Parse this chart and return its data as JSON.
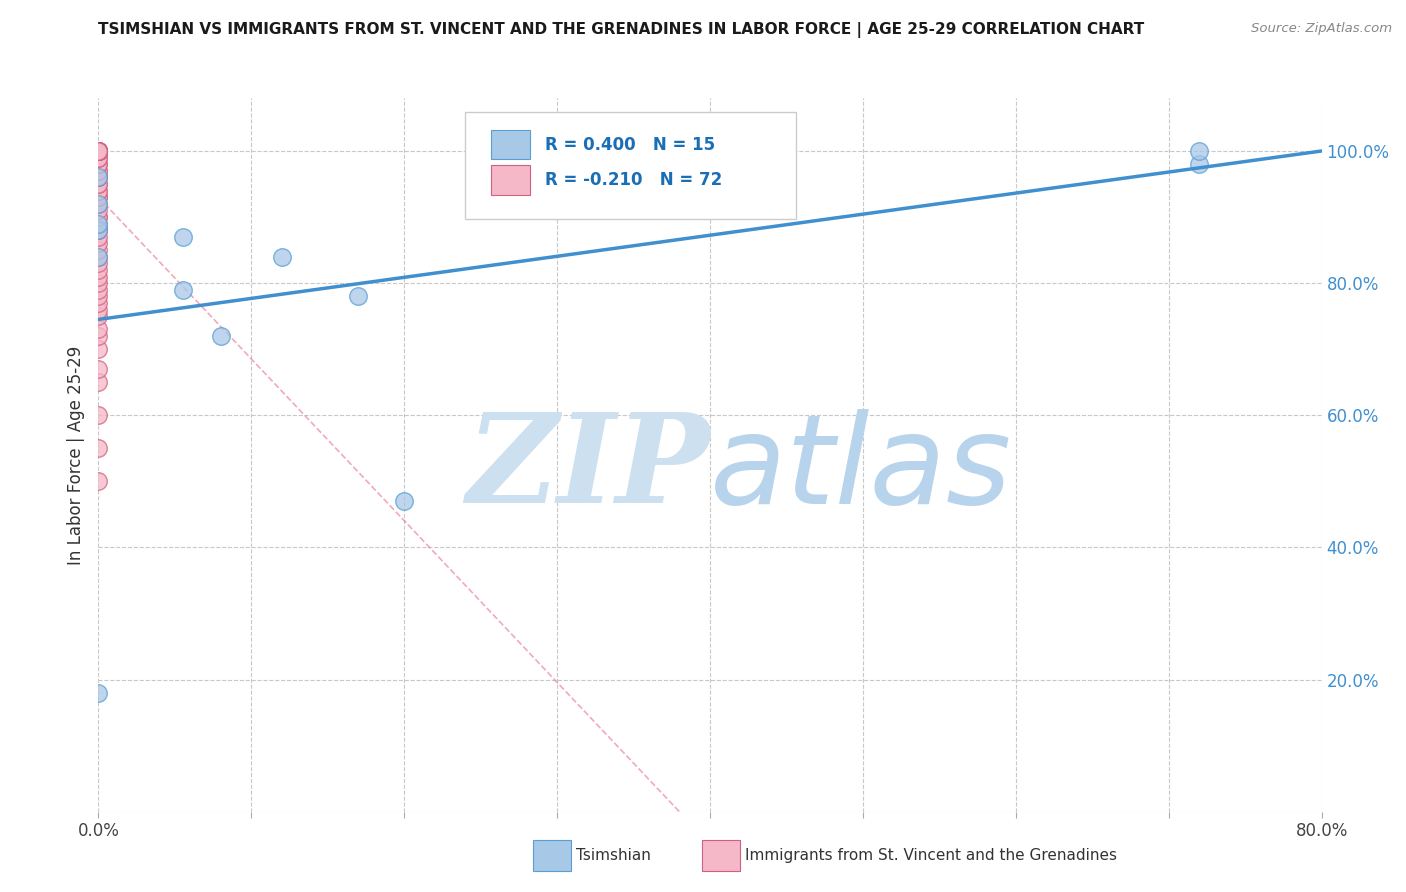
{
  "title": "TSIMSHIAN VS IMMIGRANTS FROM ST. VINCENT AND THE GRENADINES IN LABOR FORCE | AGE 25-29 CORRELATION CHART",
  "source": "Source: ZipAtlas.com",
  "ylabel": "In Labor Force | Age 25-29",
  "xlim": [
    0.0,
    0.8
  ],
  "ylim": [
    0.0,
    1.08
  ],
  "xticks": [
    0.0,
    0.1,
    0.2,
    0.3,
    0.4,
    0.5,
    0.6,
    0.7,
    0.8
  ],
  "xticklabels_show": {
    "0": "0.0%",
    "8": "80.0%"
  },
  "yticks": [
    0.0,
    0.2,
    0.4,
    0.6,
    0.8,
    1.0
  ],
  "yticklabels": [
    "",
    "20.0%",
    "40.0%",
    "60.0%",
    "80.0%",
    "100.0%"
  ],
  "grid_color": "#c8c8c8",
  "background_color": "#ffffff",
  "tsimshian_color": "#a8c8e8",
  "tsimshian_edge_color": "#5a9fd4",
  "immigrants_color": "#f5b8c8",
  "immigrants_edge_color": "#d06080",
  "tsimshian_R": 0.4,
  "tsimshian_N": 15,
  "immigrants_R": -0.21,
  "immigrants_N": 72,
  "tsimshian_line_color": "#4090d0",
  "immigrants_line_color": "#e87090",
  "watermark_zip_color": "#c0d8f0",
  "watermark_atlas_color": "#b0c8e0",
  "legend_label_1": "Tsimshian",
  "legend_label_2": "Immigrants from St. Vincent and the Grenadines",
  "tsimshian_x": [
    0.0,
    0.0,
    0.0,
    0.0,
    0.0,
    0.0,
    0.055,
    0.055,
    0.08,
    0.12,
    0.17,
    0.2,
    0.72,
    0.72
  ],
  "tsimshian_y": [
    0.18,
    0.84,
    0.88,
    0.89,
    0.92,
    0.96,
    0.79,
    0.87,
    0.72,
    0.84,
    0.78,
    0.47,
    0.98,
    1.0
  ],
  "immigrants_x": [
    0.0,
    0.0,
    0.0,
    0.0,
    0.0,
    0.0,
    0.0,
    0.0,
    0.0,
    0.0,
    0.0,
    0.0,
    0.0,
    0.0,
    0.0,
    0.0,
    0.0,
    0.0,
    0.0,
    0.0,
    0.0,
    0.0,
    0.0,
    0.0,
    0.0,
    0.0,
    0.0,
    0.0,
    0.0,
    0.0,
    0.0,
    0.0,
    0.0,
    0.0,
    0.0,
    0.0,
    0.0,
    0.0,
    0.0,
    0.0,
    0.0,
    0.0,
    0.0,
    0.0,
    0.0,
    0.0,
    0.0,
    0.0,
    0.0,
    0.0,
    0.0,
    0.0,
    0.0,
    0.0,
    0.0,
    0.0,
    0.0,
    0.0,
    0.0,
    0.0,
    0.0,
    0.0,
    0.0,
    0.0,
    0.0,
    0.0,
    0.0,
    0.0,
    0.0,
    0.0,
    0.0
  ],
  "immigrants_y": [
    0.5,
    0.55,
    0.6,
    0.65,
    0.67,
    0.7,
    0.72,
    0.73,
    0.75,
    0.76,
    0.77,
    0.78,
    0.79,
    0.8,
    0.81,
    0.82,
    0.83,
    0.84,
    0.85,
    0.86,
    0.87,
    0.88,
    0.88,
    0.89,
    0.9,
    0.9,
    0.91,
    0.92,
    0.93,
    0.93,
    0.94,
    0.94,
    0.95,
    0.95,
    0.96,
    0.96,
    0.97,
    0.97,
    0.98,
    0.98,
    0.99,
    0.99,
    1.0,
    1.0,
    1.0,
    1.0,
    1.0,
    1.0,
    1.0,
    1.0,
    1.0,
    1.0,
    1.0,
    1.0,
    1.0,
    1.0,
    1.0,
    1.0,
    1.0,
    1.0,
    1.0,
    1.0,
    1.0,
    1.0,
    1.0,
    1.0,
    1.0,
    1.0,
    1.0,
    1.0,
    1.0
  ],
  "ts_line_x0": 0.0,
  "ts_line_y0": 0.745,
  "ts_line_x1": 0.8,
  "ts_line_y1": 1.0,
  "imm_line_x0": 0.0,
  "imm_line_y0": 0.93,
  "imm_line_x1": 0.38,
  "imm_line_y1": 0.0
}
